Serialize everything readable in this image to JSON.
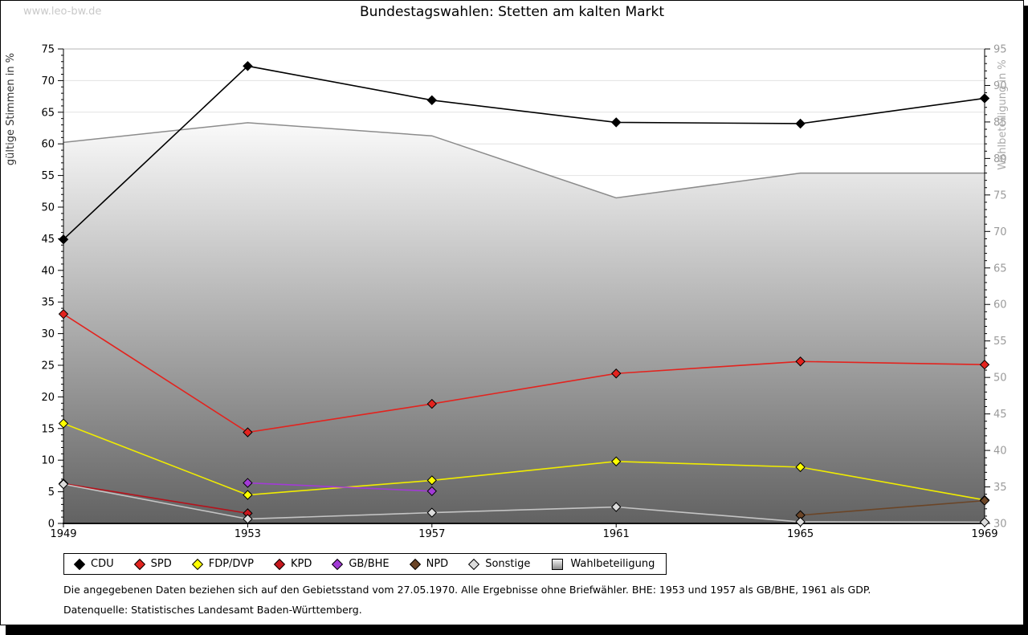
{
  "watermark": "www.leo-bw.de",
  "title": "Bundestagswahlen: Stetten am kalten Markt",
  "footnotes": [
    "Die angegebenen Daten beziehen sich auf den Gebietsstand vom 27.05.1970. Alle Ergebnisse ohne Briefwähler. BHE: 1953 und 1957 als GB/BHE, 1961 als GDP.",
    "Datenquelle: Statistisches Landesamt Baden-Württemberg."
  ],
  "chart_data": {
    "type": "line",
    "title": "Bundestagswahlen: Stetten am kalten Markt",
    "x": [
      1949,
      1953,
      1957,
      1961,
      1965,
      1969
    ],
    "xlabel": "",
    "ylabel_left": "gültige Stimmen in %",
    "ylabel_right": "Wahlbeteiligung in %",
    "ylim_left": [
      0,
      75
    ],
    "ylim_right": [
      30,
      95
    ],
    "grid": "horizontal every 5 (left axis)",
    "legend_position": "bottom",
    "series": [
      {
        "name": "CDU",
        "axis": "left",
        "marker": "diamond",
        "color": "#000000",
        "fill": "#000000",
        "values": [
          44.9,
          72.3,
          66.9,
          63.4,
          63.2,
          67.2
        ]
      },
      {
        "name": "SPD",
        "axis": "left",
        "marker": "diamond",
        "color": "#e3231e",
        "fill": "#e3231e",
        "values": [
          33.1,
          14.4,
          18.9,
          23.7,
          25.6,
          25.1
        ]
      },
      {
        "name": "FDP/DVP",
        "axis": "left",
        "marker": "diamond",
        "color": "#f0ec00",
        "fill": "#ffff00",
        "values": [
          15.8,
          4.5,
          6.8,
          9.8,
          8.9,
          3.7
        ]
      },
      {
        "name": "KPD",
        "axis": "left",
        "marker": "diamond",
        "color": "#b5121b",
        "fill": "#c8171d",
        "values": [
          6.3,
          1.6,
          null,
          null,
          null,
          null
        ]
      },
      {
        "name": "GB/BHE",
        "axis": "left",
        "marker": "diamond",
        "color": "#a23bd6",
        "fill": "#a23bd6",
        "values": [
          null,
          6.4,
          5.1,
          null,
          null,
          null
        ]
      },
      {
        "name": "NPD",
        "axis": "left",
        "marker": "diamond",
        "color": "#6b4527",
        "fill": "#6b4527",
        "values": [
          null,
          null,
          null,
          null,
          1.3,
          3.6
        ]
      },
      {
        "name": "Sonstige",
        "axis": "left",
        "marker": "diamond",
        "color": "#c4c4c4",
        "fill": "#dcdcdc",
        "values": [
          6.2,
          0.7,
          1.7,
          2.6,
          0.25,
          0.2
        ]
      },
      {
        "name": "Wahlbeteiligung",
        "axis": "right",
        "marker": "square",
        "type": "area",
        "color": "#8c8c8c",
        "fill_top": "#fafafa",
        "fill_bottom": "#626262",
        "values": [
          82.2,
          84.9,
          83.1,
          74.6,
          78.0,
          78.0
        ]
      }
    ]
  }
}
